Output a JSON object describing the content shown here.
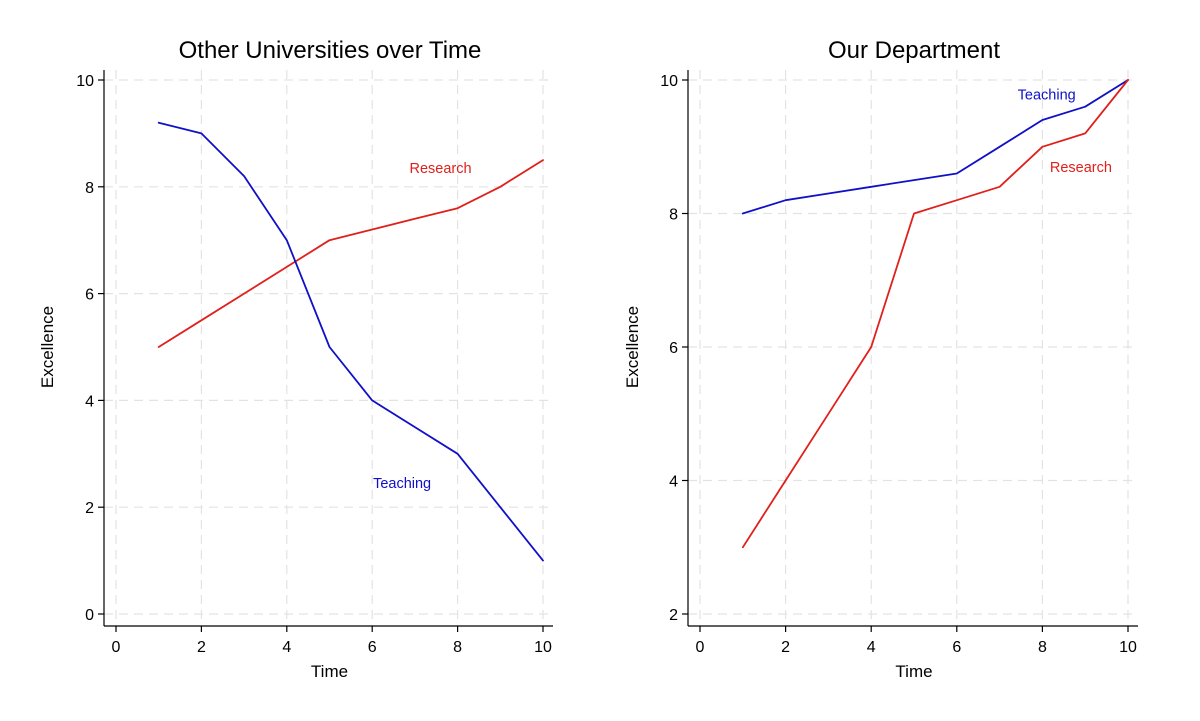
{
  "chart_data": [
    {
      "type": "line",
      "title": "Other Universities over Time",
      "xlabel": "Time",
      "ylabel": "Excellence",
      "xlim": [
        0,
        10
      ],
      "ylim": [
        0,
        10
      ],
      "xticks": [
        0,
        2,
        4,
        6,
        8,
        10
      ],
      "yticks": [
        0,
        2,
        4,
        6,
        8,
        10
      ],
      "grid": true,
      "series": [
        {
          "name": "Research",
          "color": "#e0201b",
          "x": [
            1,
            2,
            3,
            4,
            5,
            6,
            7,
            8,
            9,
            10
          ],
          "y": [
            5,
            5.5,
            6,
            6.5,
            7,
            7.2,
            7.4,
            7.6,
            8,
            8.5
          ],
          "label_at": [
            7.6,
            8.35
          ]
        },
        {
          "name": "Teaching",
          "color": "#1010c8",
          "x": [
            1,
            2,
            3,
            4,
            5,
            6,
            7,
            8,
            9,
            10
          ],
          "y": [
            9.2,
            9,
            8.2,
            7,
            5,
            4,
            3.5,
            3,
            2,
            1
          ],
          "label_at": [
            6.7,
            2.45
          ]
        }
      ]
    },
    {
      "type": "line",
      "title": "Our Department",
      "xlabel": "Time",
      "ylabel": "Excellence",
      "xlim": [
        0,
        10
      ],
      "ylim": [
        2,
        10
      ],
      "xticks": [
        0,
        2,
        4,
        6,
        8,
        10
      ],
      "yticks": [
        2,
        4,
        6,
        8,
        10
      ],
      "grid": true,
      "series": [
        {
          "name": "Teaching",
          "color": "#1010c8",
          "x": [
            1,
            2,
            3,
            4,
            5,
            6,
            7,
            8,
            9,
            10
          ],
          "y": [
            8,
            8.2,
            8.3,
            8.4,
            8.5,
            8.6,
            9,
            9.4,
            9.6,
            10
          ],
          "label_at": [
            8.1,
            9.78
          ]
        },
        {
          "name": "Research",
          "color": "#e0201b",
          "x": [
            1,
            2,
            3,
            4,
            5,
            6,
            7,
            8,
            9,
            10
          ],
          "y": [
            3,
            4,
            5,
            6,
            8,
            8.2,
            8.4,
            9,
            9.2,
            10
          ],
          "label_at": [
            8.9,
            8.7
          ]
        }
      ]
    }
  ]
}
